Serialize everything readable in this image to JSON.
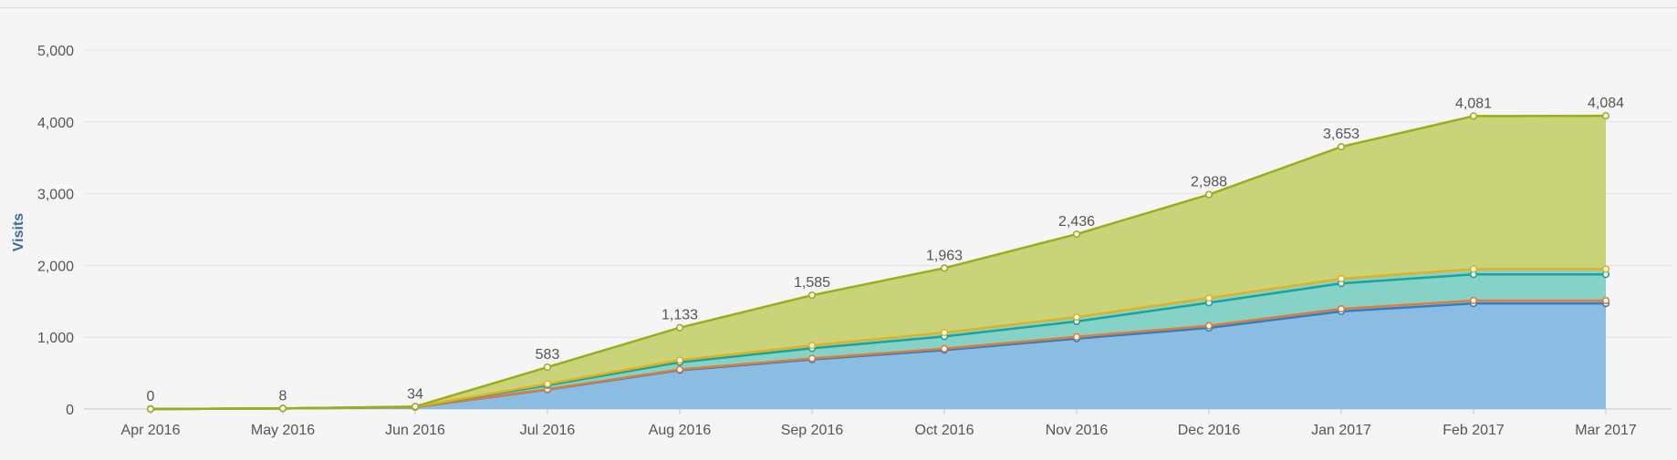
{
  "chart_data": {
    "type": "area",
    "stacked": true,
    "ylabel": "Visits",
    "ylim": [
      0,
      5000
    ],
    "yticks": [
      0,
      1000,
      2000,
      3000,
      4000,
      5000
    ],
    "ytick_labels": [
      "0",
      "1,000",
      "2,000",
      "3,000",
      "4,000",
      "5,000"
    ],
    "grid": true,
    "categories": [
      "Apr 2016",
      "May 2016",
      "Jun 2016",
      "Jul 2016",
      "Aug 2016",
      "Sep 2016",
      "Oct 2016",
      "Nov 2016",
      "Dec 2016",
      "Jan 2017",
      "Feb 2017",
      "Mar 2017"
    ],
    "series": [
      {
        "color": "#2f80c2",
        "fill": "#8bbde3",
        "values": [
          0,
          8,
          25,
          270,
          540,
          690,
          820,
          980,
          1130,
          1360,
          1470,
          1470
        ]
      },
      {
        "color": "#e07b3a",
        "fill": "#8bbde3",
        "values": [
          0,
          0,
          2,
          5,
          10,
          15,
          20,
          25,
          30,
          35,
          40,
          40
        ]
      },
      {
        "color": "#1ba39a",
        "fill": "#86d2c6",
        "values": [
          0,
          0,
          3,
          55,
          100,
          140,
          170,
          215,
          320,
          355,
          365,
          365
        ]
      },
      {
        "color": "#e6b01a",
        "fill": "#86d2c6",
        "values": [
          0,
          0,
          1,
          20,
          30,
          40,
          55,
          60,
          65,
          65,
          75,
          75
        ]
      },
      {
        "color": "#9aae1b",
        "fill": "#c8d37a",
        "values": [
          0,
          0,
          3,
          233,
          453,
          700,
          898,
          1156,
          1443,
          1838,
          2131,
          2134
        ]
      }
    ],
    "totals": [
      0,
      8,
      34,
      583,
      1133,
      1585,
      1963,
      2436,
      2988,
      3653,
      4081,
      4084
    ],
    "total_labels": [
      "0",
      "8",
      "34",
      "583",
      "1,133",
      "1,585",
      "1,963",
      "2,436",
      "2,988",
      "3,653",
      "4,081",
      "4,084"
    ]
  }
}
